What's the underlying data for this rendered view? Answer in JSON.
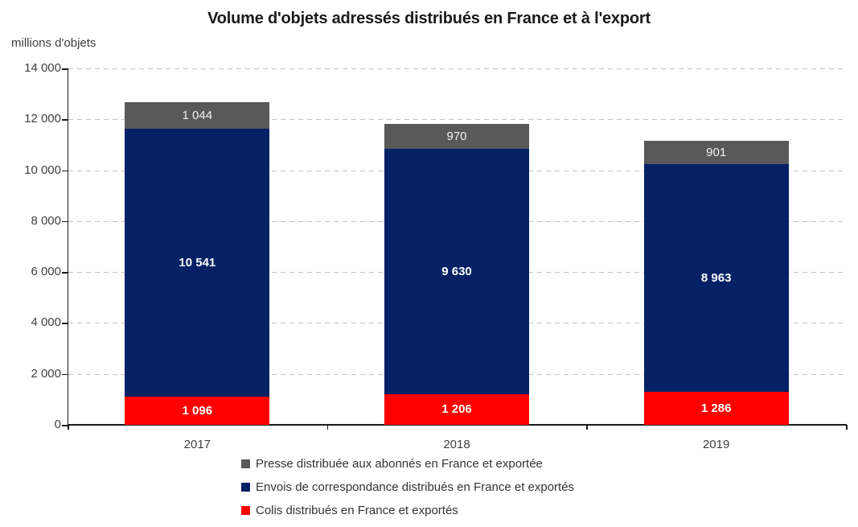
{
  "title": "Volume d'objets adressés distribués en France et à l'export",
  "chart_data": {
    "type": "bar",
    "stacked": true,
    "title": "Volume d'objets adressés distribués en France et à l'export",
    "ylabel": "millions d'objets",
    "xlabel": "",
    "categories": [
      "2017",
      "2018",
      "2019"
    ],
    "series": [
      {
        "name": "Colis distribués en France et exportés",
        "color": "#FE0000",
        "pattern": "solid",
        "label_color": "#FFFFFF",
        "label_bold": true,
        "values": [
          1096,
          1206,
          1286
        ]
      },
      {
        "name": "Envois de correspondance distribués en France et exportés",
        "color": "#042166",
        "pattern": "solid",
        "label_color": "#FFFFFF",
        "label_bold": true,
        "values": [
          10541,
          9630,
          8963
        ]
      },
      {
        "name": "Presse distribuée aux abonnés en France et exportée",
        "color": "#595959",
        "pattern": "dots",
        "label_color": "#F2F2F2",
        "label_bold": false,
        "values": [
          1044,
          970,
          901
        ]
      }
    ],
    "totals": [
      12681,
      11806,
      11150
    ],
    "ylim": [
      0,
      14000
    ],
    "ytick_step": 2000,
    "ytick_labels": [
      "0",
      "2 000",
      "4 000",
      "6 000",
      "8 000",
      "10 000",
      "12 000",
      "14 000"
    ],
    "grid": "horizontal-dashed",
    "gridline_color": "#C3C3C3",
    "axis_color": "#1A1A1A",
    "legend_position": "bottom",
    "legend_order_top_to_bottom": [
      2,
      1,
      0
    ]
  }
}
